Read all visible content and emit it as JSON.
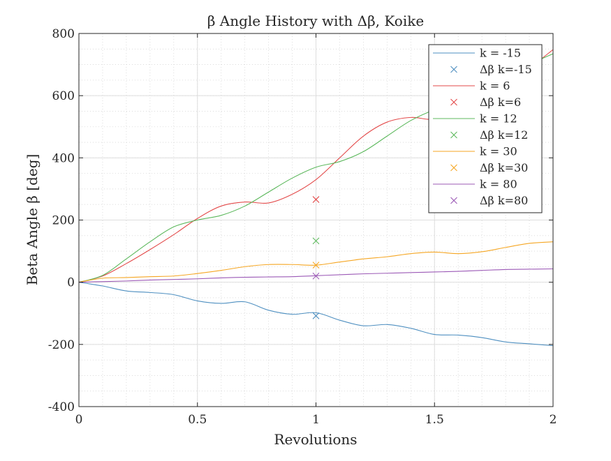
{
  "chart_data": {
    "type": "line",
    "title": "β Angle History with Δβ, Koike",
    "xlabel": "Revolutions",
    "ylabel": "Beta Angle β [deg]",
    "xlim": [
      0,
      2
    ],
    "ylim": [
      -400,
      800
    ],
    "x_ticks": [
      0,
      0.5,
      1,
      1.5,
      2
    ],
    "x_tick_labels": [
      "0",
      "0.5",
      "1",
      "1.5",
      "2"
    ],
    "y_ticks": [
      -400,
      -200,
      0,
      200,
      400,
      600,
      800
    ],
    "y_tick_labels": [
      "-400",
      "-200",
      "0",
      "200",
      "400",
      "600",
      "800"
    ],
    "grid": true,
    "minor_grid": true,
    "legend_position": "top-right",
    "x": [
      0,
      0.1,
      0.2,
      0.3,
      0.4,
      0.5,
      0.6,
      0.7,
      0.8,
      0.9,
      1.0,
      1.1,
      1.2,
      1.3,
      1.4,
      1.5,
      1.6,
      1.7,
      1.8,
      1.9,
      2.0
    ],
    "series": [
      {
        "name": "k = -15",
        "color": "#4e8fc0",
        "values": [
          0,
          -12,
          -28,
          -33,
          -40,
          -60,
          -68,
          -63,
          -90,
          -103,
          -98,
          -122,
          -140,
          -136,
          -148,
          -168,
          -170,
          -178,
          -192,
          -198,
          -204
        ],
        "delta_marker": {
          "label": "Δβ k=-15",
          "x": 1,
          "y": -108
        }
      },
      {
        "name": "k = 6",
        "color": "#e34a4a",
        "values": [
          0,
          20,
          60,
          105,
          153,
          205,
          245,
          258,
          255,
          283,
          330,
          400,
          470,
          515,
          530,
          525,
          560,
          600,
          650,
          690,
          748
        ],
        "delta_marker": {
          "label": "Δβ k=6",
          "x": 1,
          "y": 266
        }
      },
      {
        "name": "k = 12",
        "color": "#5cb85c",
        "values": [
          0,
          22,
          75,
          130,
          178,
          200,
          215,
          245,
          290,
          335,
          370,
          388,
          420,
          470,
          520,
          555,
          580,
          610,
          660,
          700,
          735
        ],
        "delta_marker": {
          "label": "Δβ k=12",
          "x": 1,
          "y": 133
        }
      },
      {
        "name": "k = 30",
        "color": "#f5a623",
        "values": [
          0,
          13,
          15,
          18,
          20,
          28,
          38,
          50,
          57,
          57,
          55,
          65,
          75,
          82,
          92,
          97,
          92,
          98,
          112,
          125,
          130
        ],
        "delta_marker": {
          "label": "Δβ k=30",
          "x": 1,
          "y": 55
        }
      },
      {
        "name": "k = 80",
        "color": "#9b59b6",
        "values": [
          0,
          2,
          4,
          7,
          9,
          11,
          14,
          16,
          17,
          18,
          21,
          24,
          27,
          29,
          31,
          33,
          35,
          38,
          41,
          42,
          43
        ],
        "delta_marker": {
          "label": "Δβ k=80",
          "x": 1,
          "y": 20
        }
      }
    ]
  }
}
